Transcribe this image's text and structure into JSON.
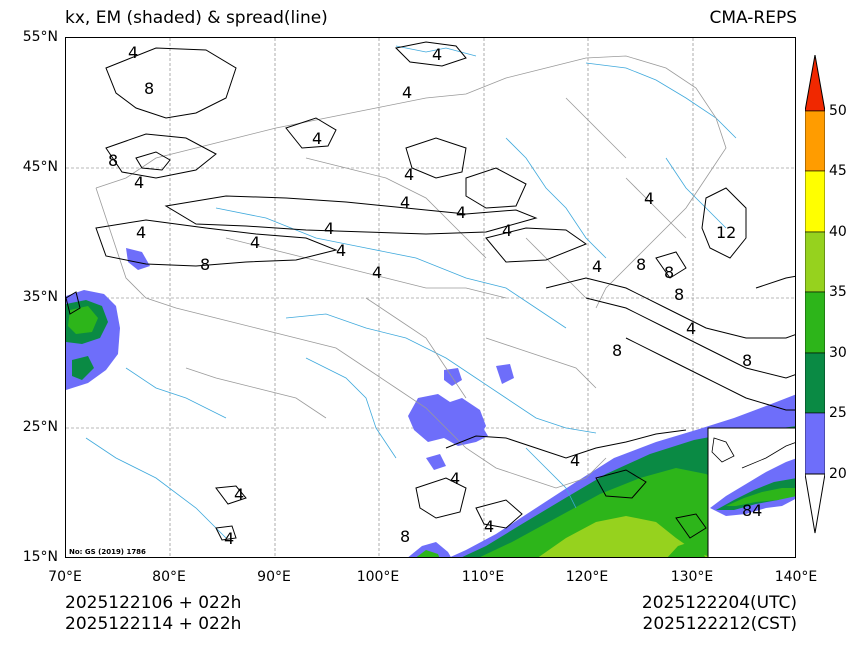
{
  "header": {
    "title": "kx, EM (shaded) & spread(line)",
    "source": "CMA-REPS"
  },
  "map": {
    "lat_ticks": [
      "55°N",
      "45°N",
      "35°N",
      "25°N",
      "15°N"
    ],
    "lon_ticks": [
      "70°E",
      "80°E",
      "90°E",
      "100°E",
      "110°E",
      "120°E",
      "130°E",
      "140°E"
    ],
    "note": "No: GS (2019) 1786",
    "contour_labels": [
      "4",
      "8",
      "4",
      "8",
      "4",
      "4",
      "4",
      "4",
      "4",
      "4",
      "4",
      "8",
      "4",
      "4",
      "4",
      "4",
      "4",
      "8",
      "4",
      "8",
      "8",
      "4",
      "12",
      "4",
      "8",
      "8",
      "4",
      "4",
      "4",
      "8",
      "4",
      "4"
    ],
    "inset_label": "84",
    "colors": {
      "c20": "#6e6efa",
      "c25": "#0a8a44",
      "c30": "#2db51a",
      "c35": "#96d21e",
      "c40": "#ffff00",
      "c45": "#ff9c00",
      "c50": "#f02800",
      "river": "#3fa9dc",
      "border": "#9a9a9a"
    }
  },
  "colorbar": {
    "ticks": [
      "50",
      "45",
      "40",
      "35",
      "30",
      "25",
      "20"
    ]
  },
  "footer": {
    "init_utc": "2025122106  +  022h",
    "init_cst": "2025122114  +  022h",
    "valid_utc": "2025122204(UTC)",
    "valid_cst": "2025122212(CST)"
  }
}
